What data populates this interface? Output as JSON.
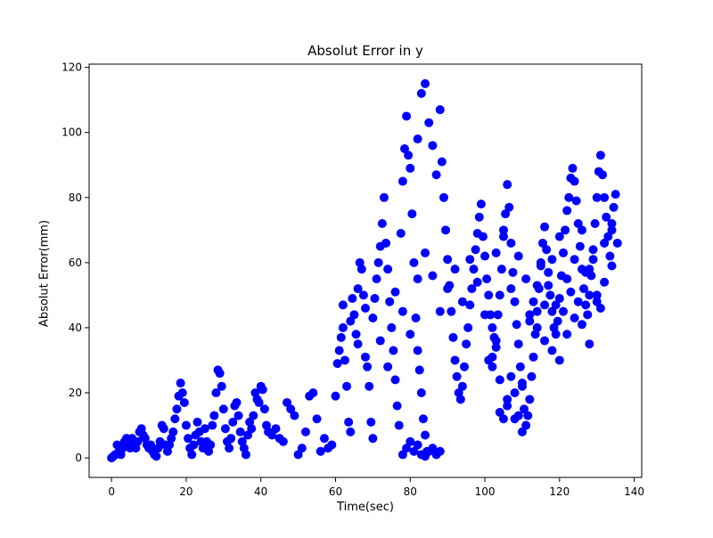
{
  "chart_data": {
    "type": "scatter",
    "title": "Absolut Error in y",
    "xlabel": "Time(sec)",
    "ylabel": "Absolut Error(mm)",
    "xlim": [
      -6,
      142
    ],
    "ylim": [
      -6,
      121
    ],
    "xticks": [
      0,
      20,
      40,
      60,
      80,
      100,
      120,
      140
    ],
    "yticks": [
      0,
      20,
      40,
      60,
      80,
      100,
      120
    ],
    "grid": false,
    "marker_color": "#0000ff",
    "series": [
      {
        "points": [
          [
            0,
            0
          ],
          [
            0.5,
            0.5
          ],
          [
            1,
            1
          ],
          [
            1.5,
            4
          ],
          [
            2,
            2
          ],
          [
            2.5,
            1
          ],
          [
            3,
            3
          ],
          [
            3.5,
            5
          ],
          [
            4,
            6
          ],
          [
            4.5,
            5
          ],
          [
            5,
            3
          ],
          [
            5.5,
            6
          ],
          [
            6,
            4
          ],
          [
            6.5,
            3
          ],
          [
            7,
            5
          ],
          [
            7.5,
            8
          ],
          [
            8,
            9
          ],
          [
            8.5,
            7
          ],
          [
            9,
            6
          ],
          [
            9.5,
            4
          ],
          [
            10,
            3
          ],
          [
            10.5,
            4
          ],
          [
            11,
            2
          ],
          [
            11.5,
            1
          ],
          [
            12,
            0.5
          ],
          [
            12.5,
            3
          ],
          [
            13,
            5
          ],
          [
            13.5,
            10
          ],
          [
            14,
            9
          ],
          [
            14.5,
            4
          ],
          [
            15,
            2
          ],
          [
            15.5,
            4
          ],
          [
            16,
            6
          ],
          [
            16.5,
            8
          ],
          [
            17,
            12
          ],
          [
            17.5,
            15
          ],
          [
            18,
            19
          ],
          [
            18.5,
            23
          ],
          [
            19,
            20
          ],
          [
            19.5,
            17
          ],
          [
            20,
            10
          ],
          [
            20.5,
            6
          ],
          [
            21,
            3
          ],
          [
            21.5,
            1
          ],
          [
            22,
            4
          ],
          [
            22.5,
            7
          ],
          [
            23,
            11
          ],
          [
            23.5,
            8
          ],
          [
            24,
            5
          ],
          [
            24.5,
            3
          ],
          [
            25,
            9
          ],
          [
            25.5,
            5
          ],
          [
            26,
            2
          ],
          [
            26.5,
            4
          ],
          [
            27,
            10
          ],
          [
            27.5,
            13
          ],
          [
            28,
            20
          ],
          [
            28.5,
            27
          ],
          [
            29,
            26
          ],
          [
            29.5,
            22
          ],
          [
            30,
            15
          ],
          [
            30.5,
            9
          ],
          [
            31,
            5
          ],
          [
            31.5,
            3
          ],
          [
            32,
            6
          ],
          [
            32.5,
            11
          ],
          [
            33,
            16
          ],
          [
            33.5,
            17
          ],
          [
            34,
            13
          ],
          [
            34.5,
            8
          ],
          [
            35,
            5
          ],
          [
            35.5,
            3
          ],
          [
            36,
            1
          ],
          [
            36.5,
            7
          ],
          [
            37,
            11
          ],
          [
            37.5,
            9
          ],
          [
            38,
            13
          ],
          [
            38.5,
            20
          ],
          [
            39,
            18
          ],
          [
            39.5,
            17
          ],
          [
            40,
            22
          ],
          [
            40.5,
            21
          ],
          [
            41,
            15
          ],
          [
            41.5,
            10
          ],
          [
            42,
            8
          ],
          [
            43,
            7
          ],
          [
            44,
            9
          ],
          [
            45,
            6
          ],
          [
            46,
            5
          ],
          [
            47,
            17
          ],
          [
            48,
            15
          ],
          [
            49,
            13
          ],
          [
            50,
            1
          ],
          [
            51,
            3
          ],
          [
            52,
            8
          ],
          [
            53,
            19
          ],
          [
            54,
            20
          ],
          [
            55,
            12
          ],
          [
            56,
            2
          ],
          [
            57,
            6
          ],
          [
            58,
            3
          ],
          [
            59,
            4
          ],
          [
            60,
            19
          ],
          [
            60.5,
            29
          ],
          [
            61,
            33
          ],
          [
            61.5,
            37
          ],
          [
            62,
            40
          ],
          [
            62.5,
            30
          ],
          [
            63,
            22
          ],
          [
            63.5,
            11
          ],
          [
            64,
            8
          ],
          [
            64.5,
            49
          ],
          [
            65,
            44
          ],
          [
            65.5,
            38
          ],
          [
            66,
            52
          ],
          [
            66.5,
            60
          ],
          [
            67,
            58
          ],
          [
            67.5,
            50
          ],
          [
            68,
            46
          ],
          [
            68.5,
            28
          ],
          [
            69,
            22
          ],
          [
            69.5,
            11
          ],
          [
            70,
            6
          ],
          [
            70.5,
            49
          ],
          [
            71,
            55
          ],
          [
            71.5,
            60
          ],
          [
            72,
            65
          ],
          [
            72.5,
            72
          ],
          [
            73,
            80
          ],
          [
            73.5,
            66
          ],
          [
            74,
            58
          ],
          [
            74.5,
            48
          ],
          [
            75,
            40
          ],
          [
            75.5,
            33
          ],
          [
            76,
            24
          ],
          [
            76.5,
            16
          ],
          [
            77,
            10
          ],
          [
            77.5,
            69
          ],
          [
            78,
            85
          ],
          [
            78.5,
            95
          ],
          [
            79,
            105
          ],
          [
            79.5,
            93
          ],
          [
            80,
            89
          ],
          [
            80.5,
            75
          ],
          [
            81,
            60
          ],
          [
            81.5,
            43
          ],
          [
            82,
            33
          ],
          [
            82.5,
            27
          ],
          [
            83,
            20
          ],
          [
            83.5,
            12
          ],
          [
            84,
            7
          ],
          [
            84.5,
            2
          ],
          [
            78,
            1
          ],
          [
            79,
            3
          ],
          [
            80,
            5
          ],
          [
            81,
            2
          ],
          [
            82,
            4
          ],
          [
            83,
            1
          ],
          [
            84,
            0.5
          ],
          [
            85,
            2
          ],
          [
            86,
            3
          ],
          [
            87,
            1
          ],
          [
            88,
            2
          ],
          [
            82,
            98
          ],
          [
            83,
            112
          ],
          [
            84,
            115
          ],
          [
            85,
            103
          ],
          [
            86,
            96
          ],
          [
            87,
            87
          ],
          [
            88,
            107
          ],
          [
            88.5,
            91
          ],
          [
            89,
            80
          ],
          [
            89.5,
            70
          ],
          [
            90,
            61
          ],
          [
            90.5,
            53
          ],
          [
            91,
            45
          ],
          [
            91.5,
            37
          ],
          [
            92,
            30
          ],
          [
            92.5,
            25
          ],
          [
            93,
            20
          ],
          [
            93.5,
            18
          ],
          [
            94,
            22
          ],
          [
            94.5,
            28
          ],
          [
            95,
            35
          ],
          [
            95.5,
            40
          ],
          [
            96,
            47
          ],
          [
            96.5,
            52
          ],
          [
            97,
            58
          ],
          [
            97.5,
            64
          ],
          [
            98,
            69
          ],
          [
            98.5,
            74
          ],
          [
            99,
            78
          ],
          [
            99.5,
            68
          ],
          [
            100,
            62
          ],
          [
            100.5,
            55
          ],
          [
            101,
            50
          ],
          [
            101.5,
            44
          ],
          [
            102,
            40
          ],
          [
            102.5,
            37
          ],
          [
            103,
            36
          ],
          [
            103.5,
            44
          ],
          [
            104,
            50
          ],
          [
            104.5,
            58
          ],
          [
            105,
            68
          ],
          [
            105.5,
            75
          ],
          [
            106,
            84
          ],
          [
            106.5,
            77
          ],
          [
            107,
            66
          ],
          [
            107.5,
            57
          ],
          [
            108,
            48
          ],
          [
            108.5,
            41
          ],
          [
            109,
            35
          ],
          [
            109.5,
            28
          ],
          [
            110,
            22
          ],
          [
            110.5,
            15
          ],
          [
            111,
            10
          ],
          [
            111.5,
            13
          ],
          [
            112,
            18
          ],
          [
            112.5,
            25
          ],
          [
            113,
            31
          ],
          [
            113.5,
            38
          ],
          [
            114,
            45
          ],
          [
            114.5,
            52
          ],
          [
            115,
            59
          ],
          [
            115.5,
            66
          ],
          [
            116,
            71
          ],
          [
            116.5,
            64
          ],
          [
            117,
            57
          ],
          [
            117.5,
            50
          ],
          [
            118,
            45
          ],
          [
            118.5,
            40
          ],
          [
            119,
            38
          ],
          [
            119.5,
            42
          ],
          [
            120,
            49
          ],
          [
            120.5,
            56
          ],
          [
            121,
            63
          ],
          [
            121.5,
            70
          ],
          [
            122,
            76
          ],
          [
            122.5,
            80
          ],
          [
            123,
            86
          ],
          [
            123.5,
            89
          ],
          [
            124,
            85
          ],
          [
            124.5,
            79
          ],
          [
            125,
            72
          ],
          [
            125.5,
            65
          ],
          [
            126,
            58
          ],
          [
            126.5,
            52
          ],
          [
            127,
            47
          ],
          [
            127.5,
            44
          ],
          [
            128,
            50
          ],
          [
            128.5,
            56
          ],
          [
            129,
            64
          ],
          [
            129.5,
            72
          ],
          [
            130,
            80
          ],
          [
            130.5,
            88
          ],
          [
            131,
            93
          ],
          [
            131.5,
            87
          ],
          [
            132,
            80
          ],
          [
            132.5,
            74
          ],
          [
            133,
            68
          ],
          [
            133.5,
            62
          ],
          [
            134,
            70
          ],
          [
            134.5,
            77
          ],
          [
            135,
            81
          ],
          [
            135.5,
            66
          ],
          [
            62,
            47
          ],
          [
            64,
            42
          ],
          [
            66,
            35
          ],
          [
            68,
            31
          ],
          [
            70,
            43
          ],
          [
            72,
            36
          ],
          [
            74,
            28
          ],
          [
            76,
            51
          ],
          [
            78,
            45
          ],
          [
            80,
            38
          ],
          [
            82,
            55
          ],
          [
            84,
            63
          ],
          [
            86,
            56
          ],
          [
            88,
            45
          ],
          [
            90,
            52
          ],
          [
            92,
            58
          ],
          [
            94,
            48
          ],
          [
            96,
            61
          ],
          [
            98,
            54
          ],
          [
            100,
            44
          ],
          [
            102,
            31
          ],
          [
            104,
            24
          ],
          [
            106,
            18
          ],
          [
            108,
            12
          ],
          [
            110,
            23
          ],
          [
            112,
            44
          ],
          [
            114,
            53
          ],
          [
            116,
            47
          ],
          [
            118,
            61
          ],
          [
            120,
            68
          ],
          [
            122,
            55
          ],
          [
            124,
            61
          ],
          [
            126,
            70
          ],
          [
            128,
            58
          ],
          [
            130,
            50
          ],
          [
            132,
            66
          ],
          [
            134,
            72
          ],
          [
            101,
            30
          ],
          [
            102,
            28
          ],
          [
            103,
            34
          ],
          [
            104,
            14
          ],
          [
            105,
            12
          ],
          [
            106,
            16
          ],
          [
            107,
            25
          ],
          [
            108,
            20
          ],
          [
            109,
            13
          ],
          [
            110,
            8
          ],
          [
            112,
            42
          ],
          [
            114,
            40
          ],
          [
            116,
            36
          ],
          [
            118,
            33
          ],
          [
            120,
            30
          ],
          [
            122,
            38
          ],
          [
            124,
            43
          ],
          [
            126,
            41
          ],
          [
            128,
            35
          ],
          [
            130,
            48
          ],
          [
            132,
            54
          ],
          [
            134,
            59
          ],
          [
            103,
            63
          ],
          [
            105,
            70
          ],
          [
            107,
            52
          ],
          [
            109,
            62
          ],
          [
            111,
            55
          ],
          [
            113,
            48
          ],
          [
            115,
            60
          ],
          [
            117,
            53
          ],
          [
            119,
            47
          ],
          [
            121,
            45
          ],
          [
            123,
            51
          ],
          [
            125,
            48
          ],
          [
            127,
            57
          ],
          [
            129,
            61
          ],
          [
            131,
            46
          ]
        ]
      }
    ]
  }
}
